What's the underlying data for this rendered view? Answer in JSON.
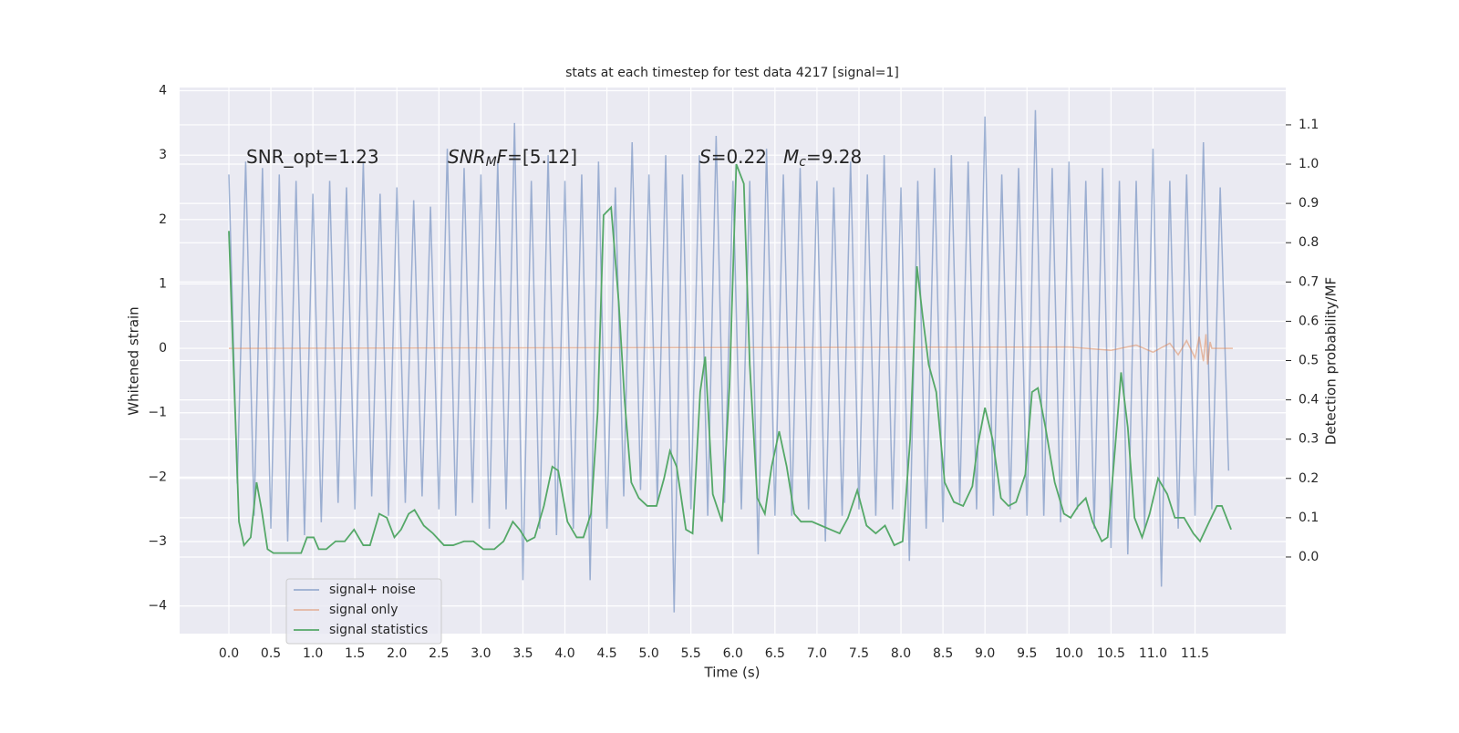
{
  "chart_data": {
    "type": "line",
    "title": "stats at each timestep for test data 4217 [signal=1]",
    "x_label": "Time (s)",
    "y_label": "Whitened strain",
    "y2_label": "Detection probability/MF",
    "annotations": [
      [
        {
          "text": "SNR_opt=1.23"
        }
      ],
      [
        {
          "text": "SNR",
          "style": "italic"
        },
        {
          "text": "M",
          "style": "sub"
        },
        {
          "text": "F",
          "style": "italic"
        },
        {
          "text": "=[5.12]"
        }
      ],
      [
        {
          "text": "S",
          "style": "italic"
        },
        {
          "text": "=0.22"
        }
      ],
      [
        {
          "text": "M",
          "style": "italic"
        },
        {
          "text": "c",
          "style": "sub"
        },
        {
          "text": "=9.28"
        }
      ]
    ],
    "xlim": [
      -0.586,
      12.58
    ],
    "ylim": [
      -4.43,
      4.05
    ],
    "y2lim": [
      -0.195,
      1.195
    ],
    "xticks": [
      {
        "value": 0,
        "label": "0.0"
      },
      0.5,
      {
        "value": 1,
        "label": "1.0"
      },
      1.5,
      {
        "value": 2,
        "label": "2.0"
      },
      2.5,
      {
        "value": 3,
        "label": "3.0"
      },
      3.5,
      {
        "value": 4,
        "label": "4.0"
      },
      4.5,
      {
        "value": 5,
        "label": "5.0"
      },
      5.5,
      {
        "value": 6,
        "label": "6.0"
      },
      6.5,
      {
        "value": 7,
        "label": "7.0"
      },
      7.5,
      {
        "value": 8,
        "label": "8.0"
      },
      8.5,
      {
        "value": 9,
        "label": "9.0"
      },
      9.5,
      {
        "value": 10,
        "label": "10.0"
      },
      10.5,
      {
        "value": 11,
        "label": "11.0"
      },
      11.5
    ],
    "yticks": [
      4,
      3,
      2,
      1,
      0,
      {
        "value": -1,
        "label": "−1"
      },
      {
        "value": -2,
        "label": "−2"
      },
      {
        "value": -3,
        "label": "−3"
      },
      {
        "value": -4,
        "label": "−4"
      }
    ],
    "y2ticks": [
      1.1,
      {
        "value": 1,
        "label": "1.0"
      },
      0.9,
      0.8,
      0.7,
      0.6,
      0.5,
      0.4,
      0.3,
      0.2,
      0.1,
      {
        "value": 0,
        "label": "0.0"
      }
    ],
    "grid": true,
    "legend": "lower left",
    "series": [
      {
        "name": "signal+ noise",
        "color": "#4c72b0",
        "alpha": 0.5,
        "x": [
          0.0,
          0.1,
          0.2,
          0.3,
          0.4,
          0.5,
          0.6,
          0.7,
          0.8,
          0.9,
          1.0,
          1.1,
          1.2,
          1.3,
          1.4,
          1.5,
          1.6,
          1.7,
          1.8,
          1.9,
          2.0,
          2.1,
          2.2,
          2.3,
          2.4,
          2.5,
          2.6,
          2.7,
          2.8,
          2.9,
          3.0,
          3.1,
          3.2,
          3.3,
          3.4,
          3.5,
          3.6,
          3.7,
          3.8,
          3.9,
          4.0,
          4.1,
          4.2,
          4.3,
          4.4,
          4.5,
          4.6,
          4.7,
          4.8,
          4.9,
          5.0,
          5.1,
          5.2,
          5.3,
          5.4,
          5.5,
          5.6,
          5.7,
          5.8,
          5.9,
          6.0,
          6.1,
          6.2,
          6.3,
          6.4,
          6.5,
          6.6,
          6.7,
          6.8,
          6.9,
          7.0,
          7.1,
          7.2,
          7.3,
          7.4,
          7.5,
          7.6,
          7.7,
          7.8,
          7.9,
          8.0,
          8.1,
          8.2,
          8.3,
          8.4,
          8.5,
          8.6,
          8.7,
          8.8,
          8.9,
          9.0,
          9.1,
          9.2,
          9.3,
          9.4,
          9.5,
          9.6,
          9.7,
          9.8,
          9.9,
          10.0,
          10.1,
          10.2,
          10.3,
          10.4,
          10.5,
          10.6,
          10.7,
          10.8,
          10.9,
          11.0,
          11.1,
          11.2,
          11.3,
          11.4,
          11.5,
          11.6,
          11.7,
          11.8,
          11.9
        ],
        "values": [
          2.7,
          -2.1,
          2.9,
          -2.6,
          2.8,
          -2.8,
          2.7,
          -3.0,
          2.6,
          -2.9,
          2.4,
          -2.7,
          2.6,
          -2.4,
          2.5,
          -2.5,
          2.9,
          -2.3,
          2.4,
          -2.6,
          2.5,
          -2.4,
          2.3,
          -2.3,
          2.2,
          -2.5,
          3.1,
          -2.6,
          2.8,
          -2.4,
          2.7,
          -2.8,
          2.9,
          -2.5,
          3.5,
          -3.6,
          2.6,
          -2.8,
          3.0,
          -2.9,
          2.6,
          -2.8,
          2.7,
          -3.6,
          2.9,
          -2.8,
          2.5,
          -2.3,
          3.2,
          -2.2,
          2.7,
          -2.4,
          3.0,
          -4.1,
          2.7,
          -2.5,
          3.0,
          -2.6,
          3.3,
          -2.4,
          2.6,
          -2.5,
          2.6,
          -3.2,
          3.1,
          -2.6,
          2.7,
          -2.6,
          2.8,
          -2.5,
          2.6,
          -3.0,
          2.5,
          -2.6,
          2.9,
          -2.5,
          2.7,
          -2.6,
          3.0,
          -2.5,
          2.5,
          -3.3,
          2.6,
          -2.8,
          2.8,
          -2.7,
          3.0,
          -2.4,
          2.9,
          -2.5,
          3.6,
          -2.6,
          2.7,
          -2.5,
          2.8,
          -2.6,
          3.7,
          -2.6,
          2.8,
          -2.7,
          2.9,
          -2.5,
          2.6,
          -2.8,
          2.8,
          -3.1,
          2.6,
          -3.2,
          2.6,
          -2.8,
          3.1,
          -3.7,
          2.6,
          -2.8,
          2.7,
          -2.6,
          3.2,
          -2.5,
          2.5,
          -1.9
        ]
      },
      {
        "name": "signal only",
        "color": "#dd8452",
        "alpha": 0.5,
        "x": [
          0,
          10.0,
          10.5,
          10.8,
          11.0,
          11.2,
          11.3,
          11.4,
          11.5,
          11.55,
          11.6,
          11.63,
          11.65,
          11.68,
          11.7,
          11.95
        ],
        "values": [
          0,
          0.02,
          -0.03,
          0.05,
          -0.06,
          0.08,
          -0.1,
          0.12,
          -0.15,
          0.18,
          -0.2,
          0.22,
          -0.25,
          0.1,
          0,
          0
        ]
      },
      {
        "name": "signal statistics",
        "color": "#55a868",
        "axis": "y2",
        "x": [
          0,
          0.12,
          0.18,
          0.26,
          0.33,
          0.39,
          0.46,
          0.53,
          0.64,
          0.75,
          0.86,
          0.93,
          1.01,
          1.07,
          1.16,
          1.27,
          1.38,
          1.49,
          1.6,
          1.68,
          1.79,
          1.88,
          1.97,
          2.05,
          2.14,
          2.21,
          2.32,
          2.43,
          2.56,
          2.67,
          2.8,
          2.91,
          3.03,
          3.16,
          3.27,
          3.38,
          3.46,
          3.55,
          3.64,
          3.75,
          3.85,
          3.92,
          4.03,
          4.14,
          4.22,
          4.31,
          4.39,
          4.46,
          4.55,
          4.64,
          4.71,
          4.79,
          4.88,
          4.98,
          5.09,
          5.18,
          5.25,
          5.33,
          5.44,
          5.52,
          5.61,
          5.67,
          5.76,
          5.87,
          5.96,
          6.04,
          6.13,
          6.2,
          6.29,
          6.38,
          6.46,
          6.55,
          6.64,
          6.73,
          6.81,
          6.94,
          7.05,
          7.16,
          7.27,
          7.37,
          7.48,
          7.59,
          7.7,
          7.81,
          7.92,
          8.02,
          8.11,
          8.19,
          8.26,
          8.33,
          8.42,
          8.52,
          8.63,
          8.74,
          8.85,
          8.91,
          9.0,
          9.09,
          9.19,
          9.28,
          9.37,
          9.48,
          9.56,
          9.63,
          9.72,
          9.83,
          9.94,
          10.02,
          10.11,
          10.2,
          10.28,
          10.39,
          10.46,
          10.55,
          10.62,
          10.7,
          10.78,
          10.87,
          10.96,
          11.06,
          11.17,
          11.26,
          11.37,
          11.48,
          11.56,
          11.67,
          11.76,
          11.82,
          11.93
        ],
        "values": [
          0.83,
          0.09,
          0.03,
          0.05,
          0.19,
          0.12,
          0.02,
          0.01,
          0.01,
          0.01,
          0.01,
          0.05,
          0.05,
          0.02,
          0.02,
          0.04,
          0.04,
          0.07,
          0.03,
          0.03,
          0.11,
          0.1,
          0.05,
          0.07,
          0.11,
          0.12,
          0.08,
          0.06,
          0.03,
          0.03,
          0.04,
          0.04,
          0.02,
          0.02,
          0.04,
          0.09,
          0.07,
          0.04,
          0.05,
          0.13,
          0.23,
          0.22,
          0.09,
          0.05,
          0.05,
          0.11,
          0.37,
          0.87,
          0.89,
          0.65,
          0.4,
          0.19,
          0.15,
          0.13,
          0.13,
          0.2,
          0.27,
          0.23,
          0.07,
          0.06,
          0.42,
          0.51,
          0.16,
          0.09,
          0.44,
          1.0,
          0.95,
          0.49,
          0.15,
          0.11,
          0.23,
          0.32,
          0.23,
          0.11,
          0.09,
          0.09,
          0.08,
          0.07,
          0.06,
          0.1,
          0.17,
          0.08,
          0.06,
          0.08,
          0.03,
          0.04,
          0.3,
          0.74,
          0.61,
          0.49,
          0.42,
          0.19,
          0.14,
          0.13,
          0.18,
          0.28,
          0.38,
          0.3,
          0.15,
          0.13,
          0.14,
          0.21,
          0.42,
          0.43,
          0.33,
          0.19,
          0.11,
          0.1,
          0.13,
          0.15,
          0.09,
          0.04,
          0.05,
          0.28,
          0.47,
          0.33,
          0.1,
          0.05,
          0.11,
          0.2,
          0.16,
          0.1,
          0.1,
          0.06,
          0.04,
          0.09,
          0.13,
          0.13,
          0.07
        ]
      }
    ]
  }
}
